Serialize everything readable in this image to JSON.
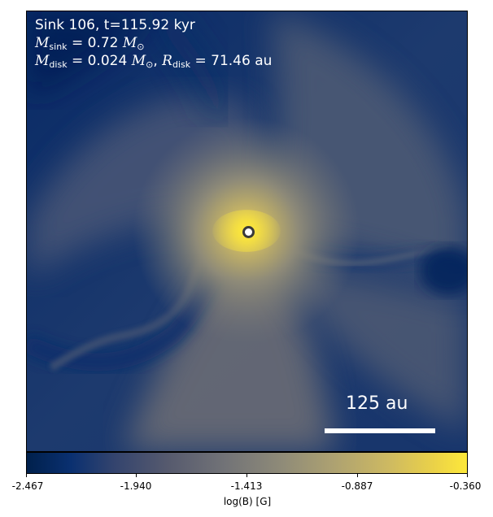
{
  "annotation": {
    "line1": "Sink 106, t=115.92 kyr",
    "msink_symbol": "M",
    "msink_sub": "sink",
    "msink_value": " = 0.72 ",
    "msun_symbol": "M",
    "msun_sub": "⊙",
    "mdisk_symbol": "M",
    "mdisk_sub": "disk",
    "mdisk_value": " = 0.024 ",
    "rdisk_symbol": "R",
    "rdisk_sub": "disk",
    "rdisk_value": " = 71.46 au",
    "comma": ", "
  },
  "scalebar": {
    "label": "125 au"
  },
  "colorbar": {
    "label": "log(B) [G]",
    "colormap": "cividis",
    "ticks": [
      "-2.467",
      "-1.940",
      "-1.413",
      "-0.887",
      "-0.360"
    ],
    "range": [
      -2.467,
      -0.36
    ]
  },
  "colors": {
    "low": "#00204c",
    "mid": "#7c7b78",
    "high": "#fde83a",
    "sink_marker_edge": "#3a3a3a"
  }
}
